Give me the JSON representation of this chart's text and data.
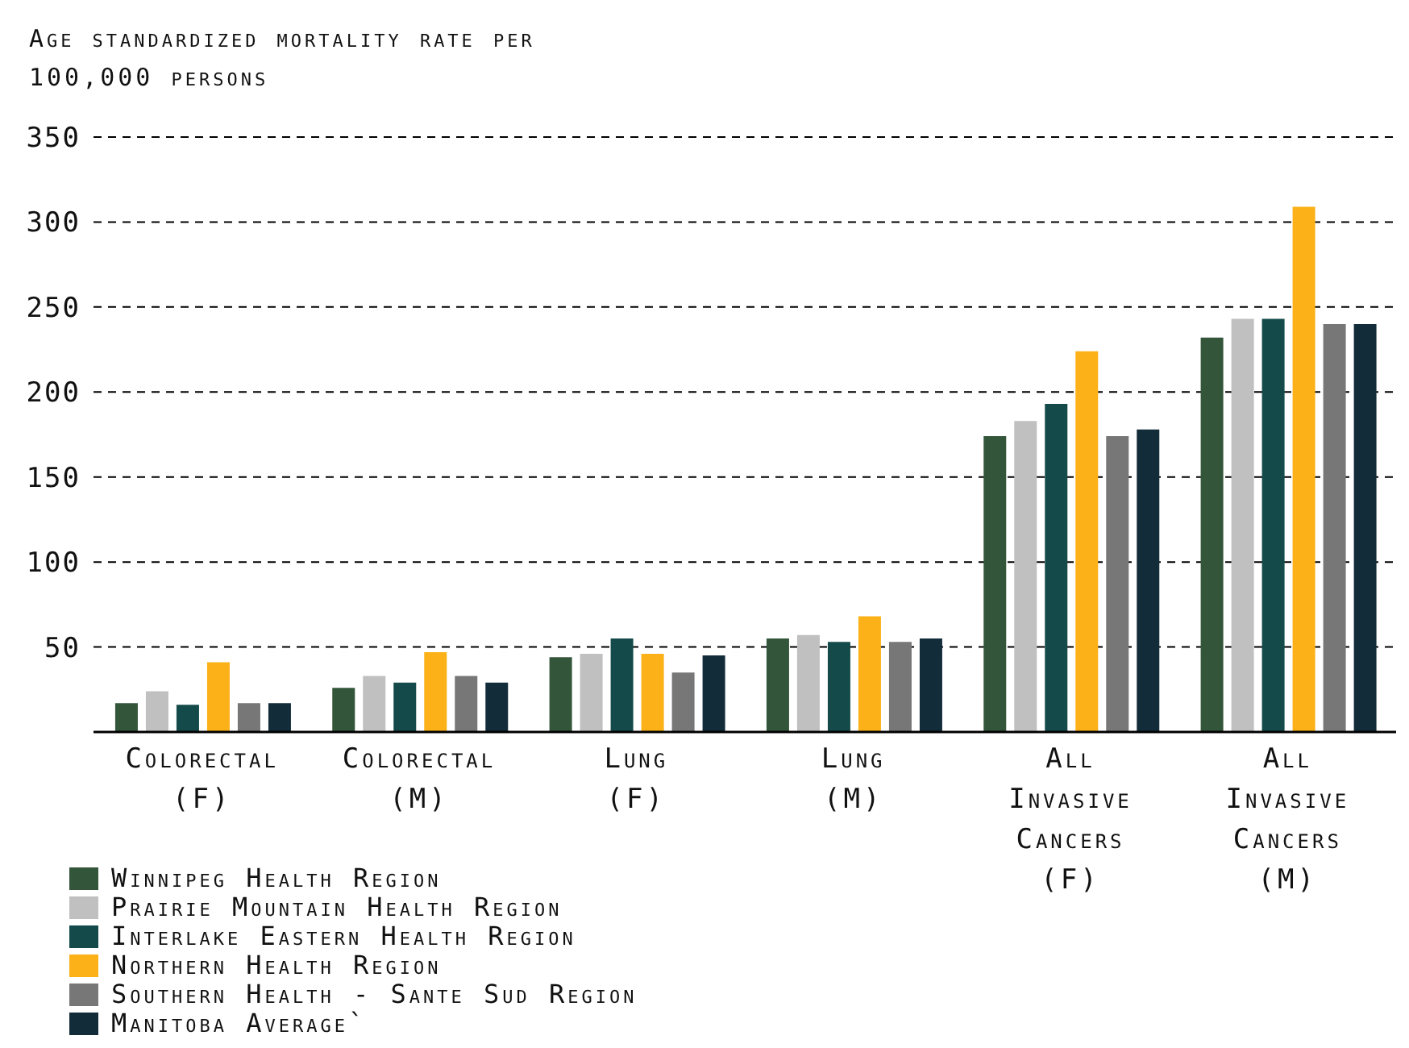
{
  "chart_data": {
    "type": "bar",
    "ylabel": "Age standardized mortality rate per 100,000 persons",
    "categories": [
      "Colorectal (F)",
      "Colorectal (M)",
      "Lung (F)",
      "Lung (M)",
      "All Invasive Cancers (F)",
      "All Invasive Cancers (M)"
    ],
    "series": [
      {
        "name": "Winnipeg Health Region",
        "color": "#33553a",
        "values": [
          17,
          26,
          44,
          55,
          174,
          232
        ]
      },
      {
        "name": "Prairie Mountain Health Region",
        "color": "#c0c0c0",
        "values": [
          24,
          33,
          46,
          57,
          183,
          243
        ]
      },
      {
        "name": "Interlake Eastern Health Region",
        "color": "#144a4a",
        "values": [
          16,
          29,
          55,
          53,
          193,
          243
        ]
      },
      {
        "name": "Northern Health Region",
        "color": "#fbb117",
        "values": [
          41,
          47,
          46,
          68,
          224,
          309
        ]
      },
      {
        "name": "Southern Health - Sante Sud Region",
        "color": "#777777",
        "values": [
          17,
          33,
          35,
          53,
          174,
          240
        ]
      },
      {
        "name": "Manitoba Average`",
        "color": "#132c3a",
        "values": [
          17,
          29,
          45,
          55,
          178,
          240
        ]
      }
    ],
    "ylim": [
      0,
      350
    ],
    "yticks": [
      50,
      100,
      150,
      200,
      250,
      300,
      350
    ],
    "grid": "y",
    "legend": "bottom left"
  }
}
